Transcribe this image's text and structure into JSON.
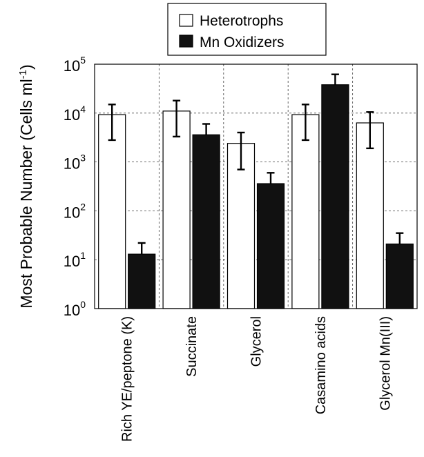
{
  "chart_data": {
    "type": "bar",
    "categories": [
      "Rich YE/peptone (K)",
      "Succinate",
      "Glycerol",
      "Casamino acids",
      "Glycerol Mn(III)"
    ],
    "series": [
      {
        "name": "Heterotrophs",
        "color": "#ffffff",
        "values": [
          9300,
          11000,
          2400,
          9300,
          6300
        ],
        "error_low": [
          2800,
          3300,
          700,
          2800,
          1900
        ],
        "error_high": [
          15000,
          18000,
          4000,
          15000,
          10500
        ]
      },
      {
        "name": "Mn Oxidizers",
        "color": "#111111",
        "values": [
          13,
          3600,
          360,
          38000,
          21
        ],
        "error_high": [
          22,
          6000,
          600,
          62000,
          35
        ]
      }
    ],
    "ylabel": "Most Probable Number (Cells ml",
    "ylabel_sup": "-1",
    "ylabel_close": ")",
    "yscale": "log",
    "ylim": [
      1,
      100000
    ],
    "yticks": [
      {
        "base": "10",
        "exp": "0"
      },
      {
        "base": "10",
        "exp": "1"
      },
      {
        "base": "10",
        "exp": "2"
      },
      {
        "base": "10",
        "exp": "3"
      },
      {
        "base": "10",
        "exp": "4"
      },
      {
        "base": "10",
        "exp": "5"
      }
    ],
    "grid": true,
    "legend_position": "top-center"
  }
}
